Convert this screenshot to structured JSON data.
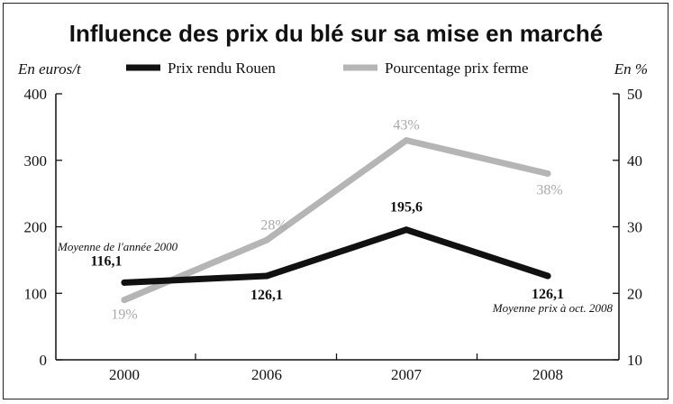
{
  "chart_data": {
    "type": "line",
    "title": "Influence des prix du blé sur sa mise en marché",
    "left_unit": "En euros/t",
    "right_unit": "En %",
    "categories": [
      "2000",
      "2006",
      "2007",
      "2008"
    ],
    "y_left": {
      "min": 0,
      "max": 400,
      "ticks": [
        "0",
        "100",
        "200",
        "300",
        "400"
      ]
    },
    "y_right": {
      "min": 10,
      "max": 50,
      "ticks": [
        "10",
        "20",
        "30",
        "40",
        "50"
      ]
    },
    "series": [
      {
        "name": "Prix rendu Rouen",
        "axis": "left",
        "color": "#111111",
        "values": [
          116.1,
          126.1,
          195.6,
          126.1
        ],
        "labels": [
          "116,1",
          "126,1",
          "195,6",
          "126,1"
        ]
      },
      {
        "name": "Pourcentage prix ferme",
        "axis": "right",
        "color": "#b5b5b5",
        "values": [
          19,
          28,
          43,
          38
        ],
        "labels": [
          "19%",
          "28%",
          "43%",
          "38%"
        ]
      }
    ],
    "annotations": {
      "start_note": "Moyenne de l'année 2000",
      "end_note": "Moyenne prix à oct. 2008"
    },
    "grid": false,
    "legend_position": "top"
  }
}
